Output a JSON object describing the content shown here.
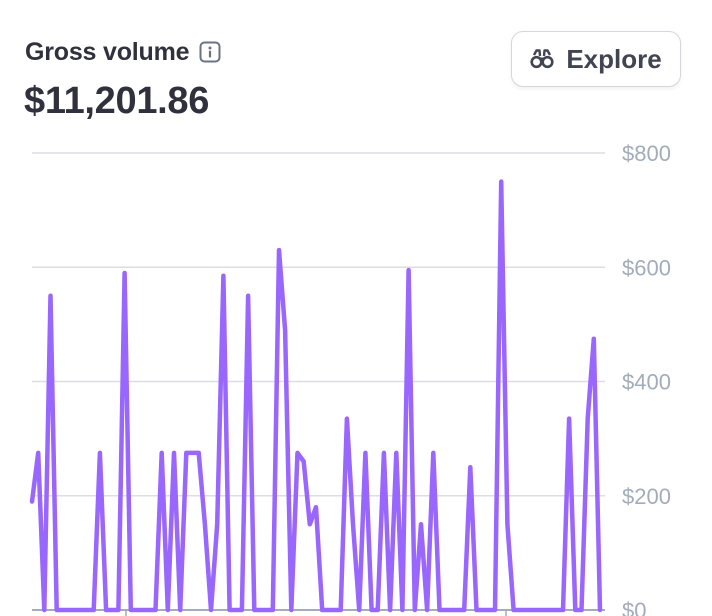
{
  "widget": {
    "title": "Gross volume",
    "info_icon": "info-icon",
    "amount": "$11,201.86",
    "explore_label": "Explore",
    "explore_icon": "binoculars-icon"
  },
  "colors": {
    "line": "#9966ff",
    "grid": "#dcdee4",
    "axis": "#a3acba",
    "text": "#30313d"
  },
  "chart_data": {
    "type": "line",
    "title": "Gross volume",
    "xlabel": "",
    "ylabel": "",
    "ylim": [
      0,
      800
    ],
    "y_ticks": [
      "$0",
      "$200",
      "$400",
      "$600",
      "$800"
    ],
    "y_tick_values": [
      0,
      200,
      400,
      600,
      800
    ],
    "grid": true,
    "series": [
      {
        "values": [
          190,
          275,
          0,
          550,
          0,
          0,
          0,
          0,
          0,
          0,
          0,
          275,
          0,
          0,
          0,
          590,
          0,
          0,
          0,
          0,
          0,
          275,
          0,
          275,
          0,
          275,
          275,
          275,
          150,
          0,
          150,
          585,
          0,
          0,
          0,
          550,
          0,
          0,
          0,
          0,
          630,
          490,
          0,
          275,
          260,
          150,
          180,
          0,
          0,
          0,
          0,
          335,
          150,
          0,
          275,
          0,
          0,
          275,
          0,
          275,
          0,
          595,
          0,
          150,
          0,
          275,
          0,
          0,
          0,
          0,
          0,
          250,
          0,
          0,
          0,
          0,
          750,
          150,
          0,
          0,
          0,
          0,
          0,
          0,
          0,
          0,
          0,
          335,
          0,
          0,
          335,
          475,
          0
        ]
      }
    ]
  }
}
